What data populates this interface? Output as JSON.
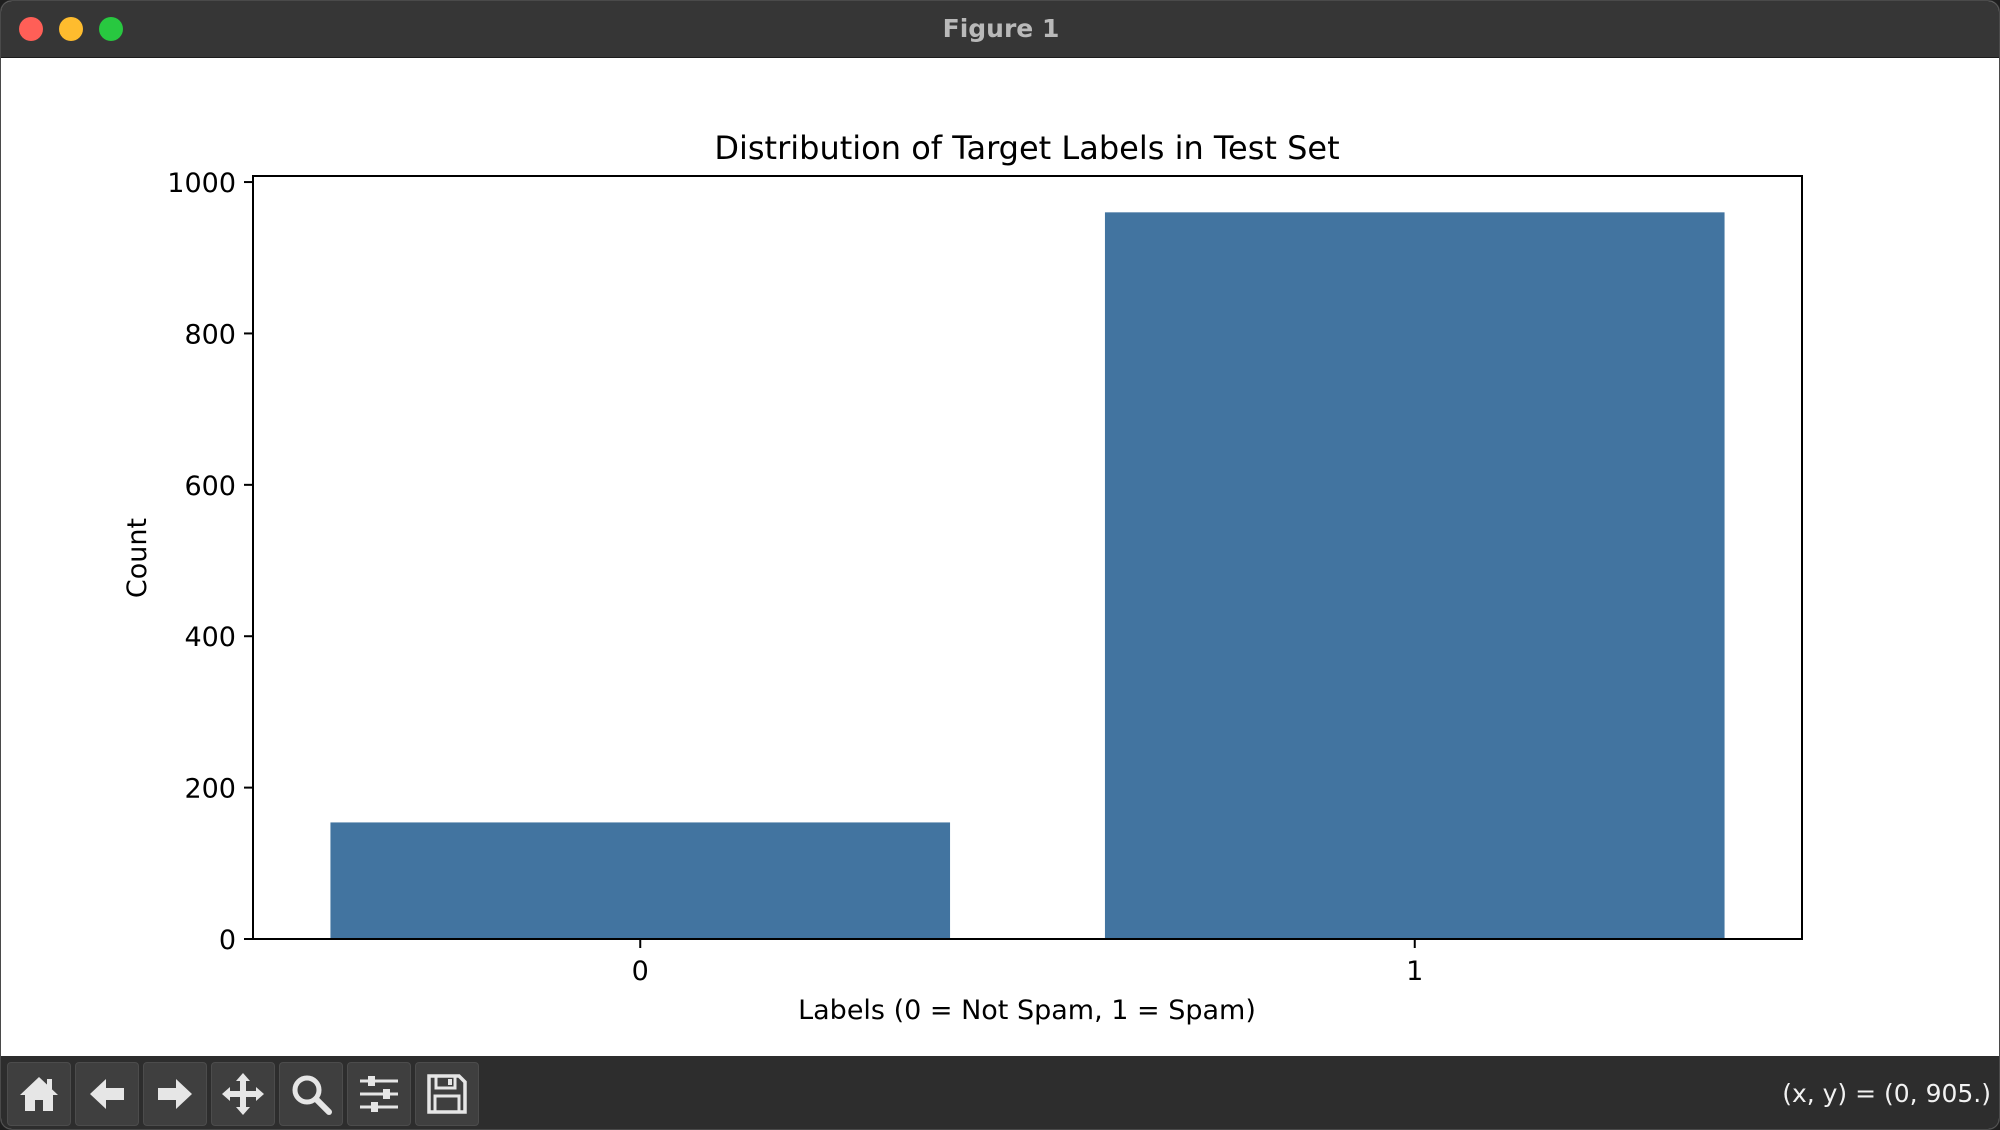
{
  "window": {
    "title": "Figure 1"
  },
  "toolbar": {
    "buttons": [
      {
        "name": "home-icon"
      },
      {
        "name": "back-arrow-icon"
      },
      {
        "name": "forward-arrow-icon"
      },
      {
        "name": "pan-icon"
      },
      {
        "name": "zoom-icon"
      },
      {
        "name": "configure-subplots-icon"
      },
      {
        "name": "save-icon"
      }
    ],
    "coords": "(x, y) = (0, 905.)"
  },
  "colors": {
    "bar": "#4274a0",
    "titlebar": "#363636",
    "toolbar": "#2d2d2d"
  },
  "chart_data": {
    "type": "bar",
    "title": "Distribution of Target Labels in Test Set",
    "xlabel": "Labels (0 = Not Spam, 1 = Spam)",
    "ylabel": "Count",
    "categories": [
      "0",
      "1"
    ],
    "values": [
      154,
      960
    ],
    "ylim": [
      0,
      1008
    ],
    "yticks": [
      0,
      200,
      400,
      600,
      800,
      1000
    ],
    "grid": false,
    "legend": "none"
  }
}
